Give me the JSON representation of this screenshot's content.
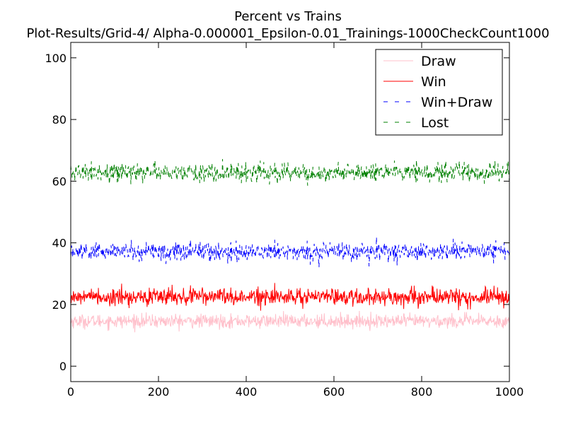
{
  "chart_data": {
    "type": "line",
    "title": "Percent vs Trains",
    "subtitle": "Plot-Results/Grid-4/ Alpha-0.000001_Epsilon-0.01_Trainings-1000CheckCount1000",
    "xlabel": "",
    "ylabel": "",
    "xlim": [
      0,
      1000
    ],
    "ylim": [
      -5,
      105
    ],
    "xticks": [
      0,
      200,
      400,
      600,
      800,
      1000
    ],
    "yticks": [
      0,
      20,
      40,
      60,
      80,
      100
    ],
    "grid": false,
    "legend": {
      "placement": "top-right"
    },
    "series": [
      {
        "name": "Draw",
        "color": "#ffc0cb",
        "style": "solid",
        "mean": 14.6,
        "spread": 1.1,
        "range": [
          11,
          18
        ]
      },
      {
        "name": "Win",
        "color": "#ff0000",
        "style": "solid",
        "mean": 22.5,
        "spread": 1.4,
        "range": [
          18,
          27
        ]
      },
      {
        "name": "Win+Draw",
        "color": "#0000ff",
        "style": "dashed",
        "mean": 37.2,
        "spread": 1.5,
        "range": [
          31,
          42
        ]
      },
      {
        "name": "Lost",
        "color": "#008000",
        "style": "dashed",
        "mean": 62.8,
        "spread": 1.5,
        "range": [
          58,
          69
        ]
      }
    ],
    "x_points": 1000
  }
}
